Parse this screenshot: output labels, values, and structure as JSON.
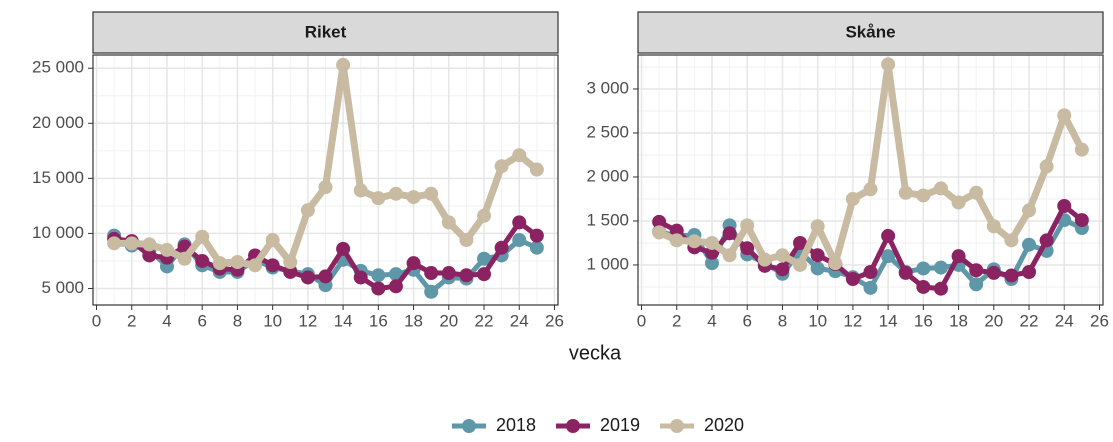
{
  "chart_data": [
    {
      "type": "line",
      "title": "Riket",
      "x_label": "vecka",
      "legend": "bottom",
      "grid": true,
      "x": [
        1,
        2,
        3,
        4,
        5,
        6,
        7,
        8,
        9,
        10,
        11,
        12,
        13,
        14,
        15,
        16,
        17,
        18,
        19,
        20,
        21,
        22,
        23,
        24,
        25
      ],
      "xlim": [
        -0.2,
        26.2
      ],
      "xticks": [
        0,
        2,
        4,
        6,
        8,
        10,
        12,
        14,
        16,
        18,
        20,
        22,
        24,
        26
      ],
      "ylim": [
        3500,
        26200
      ],
      "yticks": [
        {
          "value": 5000,
          "label": "5 000"
        },
        {
          "value": 10000,
          "label": "10 000"
        },
        {
          "value": 15000,
          "label": "15 000"
        },
        {
          "value": 20000,
          "label": "20 000"
        },
        {
          "value": 25000,
          "label": "25 000"
        }
      ],
      "series": [
        {
          "name": "2018",
          "color": "#5e98a8",
          "values": [
            9800,
            8900,
            8500,
            7000,
            9000,
            7100,
            6500,
            6500,
            7600,
            6900,
            6600,
            6300,
            5300,
            7600,
            6600,
            6200,
            6300,
            6700,
            4700,
            6000,
            5900,
            7700,
            8000,
            9400,
            8700
          ]
        },
        {
          "name": "2019",
          "color": "#8b2362",
          "values": [
            9500,
            9300,
            8000,
            7800,
            8800,
            7500,
            6800,
            6700,
            8000,
            7100,
            6500,
            6000,
            6100,
            8600,
            6000,
            5000,
            5200,
            7300,
            6400,
            6400,
            6200,
            6300,
            8700,
            11000,
            9800
          ]
        },
        {
          "name": "2020",
          "color": "#c8bba1",
          "values": [
            9100,
            9100,
            9000,
            8500,
            7700,
            9700,
            7300,
            7400,
            7100,
            9400,
            7400,
            12100,
            14200,
            25300,
            13900,
            13200,
            13600,
            13300,
            13600,
            11000,
            9400,
            11600,
            16100,
            17100,
            15800
          ]
        }
      ]
    },
    {
      "type": "line",
      "title": "Skåne",
      "grid": true,
      "x": [
        1,
        2,
        3,
        4,
        5,
        6,
        7,
        8,
        9,
        10,
        11,
        12,
        13,
        14,
        15,
        16,
        17,
        18,
        19,
        20,
        21,
        22,
        23,
        24,
        25
      ],
      "xlim": [
        -0.2,
        26.2
      ],
      "xticks": [
        0,
        2,
        4,
        6,
        8,
        10,
        12,
        14,
        16,
        18,
        20,
        22,
        24,
        26
      ],
      "ylim": [
        545,
        3386
      ],
      "yticks": [
        {
          "value": 1000,
          "label": "1 000"
        },
        {
          "value": 1500,
          "label": "1 500"
        },
        {
          "value": 2000,
          "label": "2 000"
        },
        {
          "value": 2500,
          "label": "2 500"
        },
        {
          "value": 3000,
          "label": "3 000"
        }
      ],
      "series": [
        {
          "name": "2018",
          "color": "#5e98a8",
          "values": [
            1380,
            1330,
            1340,
            1020,
            1450,
            1120,
            1020,
            900,
            1150,
            960,
            930,
            860,
            740,
            1100,
            920,
            960,
            970,
            1000,
            780,
            950,
            840,
            1230,
            1160,
            1510,
            1420
          ]
        },
        {
          "name": "2019",
          "color": "#8b2362",
          "values": [
            1490,
            1390,
            1200,
            1140,
            1360,
            1190,
            990,
            950,
            1250,
            1110,
            1010,
            840,
            920,
            1330,
            910,
            750,
            730,
            1100,
            940,
            910,
            880,
            920,
            1280,
            1670,
            1510
          ]
        },
        {
          "name": "2020",
          "color": "#c8bba1",
          "values": [
            1370,
            1280,
            1270,
            1250,
            1110,
            1450,
            1060,
            1110,
            1000,
            1440,
            1020,
            1750,
            1860,
            3280,
            1820,
            1790,
            1870,
            1710,
            1820,
            1440,
            1280,
            1620,
            2120,
            2700,
            2310
          ]
        }
      ]
    }
  ]
}
